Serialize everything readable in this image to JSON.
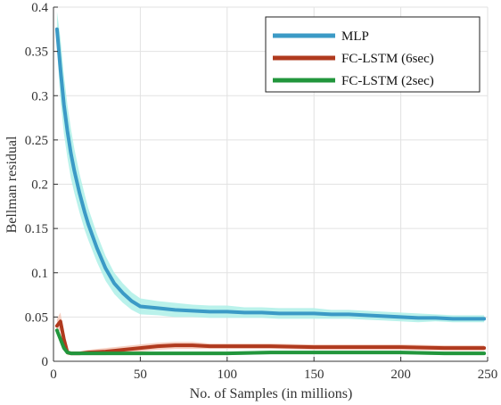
{
  "chart_data": {
    "type": "line",
    "title": "",
    "xlabel": "No. of Samples (in millions)",
    "ylabel": "Bellman residual",
    "xlim": [
      0,
      250
    ],
    "ylim": [
      0,
      0.4
    ],
    "xticks": [
      0,
      50,
      100,
      150,
      200,
      250
    ],
    "xtick_labels": [
      "0",
      "50",
      "100",
      "150",
      "200",
      "250"
    ],
    "yticks": [
      0,
      0.05,
      0.1,
      0.15,
      0.2,
      0.25,
      0.3,
      0.35,
      0.4
    ],
    "ytick_labels": [
      "0",
      "0.05",
      "0.1",
      "0.15",
      "0.2",
      "0.25",
      "0.3",
      "0.35",
      "0.4"
    ],
    "grid": true,
    "legend_position": "top-right",
    "series": [
      {
        "name": "MLP",
        "color": "#3b9ac6",
        "band_color": "#aef0e8",
        "x": [
          2,
          4,
          6,
          8,
          10,
          12,
          15,
          18,
          20,
          25,
          30,
          35,
          40,
          45,
          50,
          60,
          70,
          80,
          90,
          100,
          110,
          120,
          130,
          140,
          150,
          160,
          170,
          180,
          190,
          200,
          210,
          220,
          230,
          240,
          248
        ],
        "y": [
          0.375,
          0.33,
          0.29,
          0.26,
          0.235,
          0.215,
          0.19,
          0.168,
          0.155,
          0.128,
          0.105,
          0.088,
          0.077,
          0.068,
          0.062,
          0.06,
          0.058,
          0.057,
          0.056,
          0.056,
          0.055,
          0.055,
          0.054,
          0.054,
          0.054,
          0.053,
          0.053,
          0.052,
          0.051,
          0.05,
          0.049,
          0.049,
          0.048,
          0.048,
          0.048
        ],
        "band": [
          0.02,
          0.035,
          0.033,
          0.03,
          0.028,
          0.025,
          0.022,
          0.02,
          0.018,
          0.016,
          0.014,
          0.012,
          0.011,
          0.01,
          0.009,
          0.008,
          0.008,
          0.007,
          0.007,
          0.007,
          0.006,
          0.006,
          0.006,
          0.006,
          0.006,
          0.005,
          0.005,
          0.005,
          0.005,
          0.005,
          0.005,
          0.004,
          0.004,
          0.004,
          0.004
        ]
      },
      {
        "name": "FC-LSTM (6sec)",
        "color": "#b03a1e",
        "band_color": "#f5c8b8",
        "x": [
          2,
          4,
          6,
          8,
          10,
          15,
          20,
          30,
          40,
          50,
          60,
          70,
          80,
          90,
          100,
          125,
          150,
          175,
          200,
          225,
          248
        ],
        "y": [
          0.04,
          0.045,
          0.025,
          0.01,
          0.009,
          0.009,
          0.01,
          0.011,
          0.013,
          0.015,
          0.017,
          0.018,
          0.018,
          0.017,
          0.017,
          0.017,
          0.016,
          0.016,
          0.016,
          0.015,
          0.015
        ],
        "band": [
          0.008,
          0.01,
          0.008,
          0.003,
          0.002,
          0.002,
          0.003,
          0.004,
          0.004,
          0.004,
          0.004,
          0.004,
          0.004,
          0.003,
          0.003,
          0.003,
          0.003,
          0.003,
          0.003,
          0.003,
          0.003
        ]
      },
      {
        "name": "FC-LSTM (2sec)",
        "color": "#22963c",
        "band_color": "#b8e6c0",
        "x": [
          2,
          4,
          6,
          8,
          10,
          15,
          20,
          30,
          40,
          50,
          75,
          100,
          125,
          150,
          175,
          200,
          225,
          248
        ],
        "y": [
          0.035,
          0.025,
          0.015,
          0.01,
          0.009,
          0.009,
          0.009,
          0.009,
          0.009,
          0.009,
          0.009,
          0.009,
          0.01,
          0.01,
          0.01,
          0.01,
          0.009,
          0.009
        ],
        "band": [
          0.005,
          0.004,
          0.003,
          0.002,
          0.002,
          0.002,
          0.002,
          0.002,
          0.002,
          0.002,
          0.002,
          0.002,
          0.002,
          0.002,
          0.002,
          0.002,
          0.002,
          0.002
        ]
      }
    ]
  }
}
